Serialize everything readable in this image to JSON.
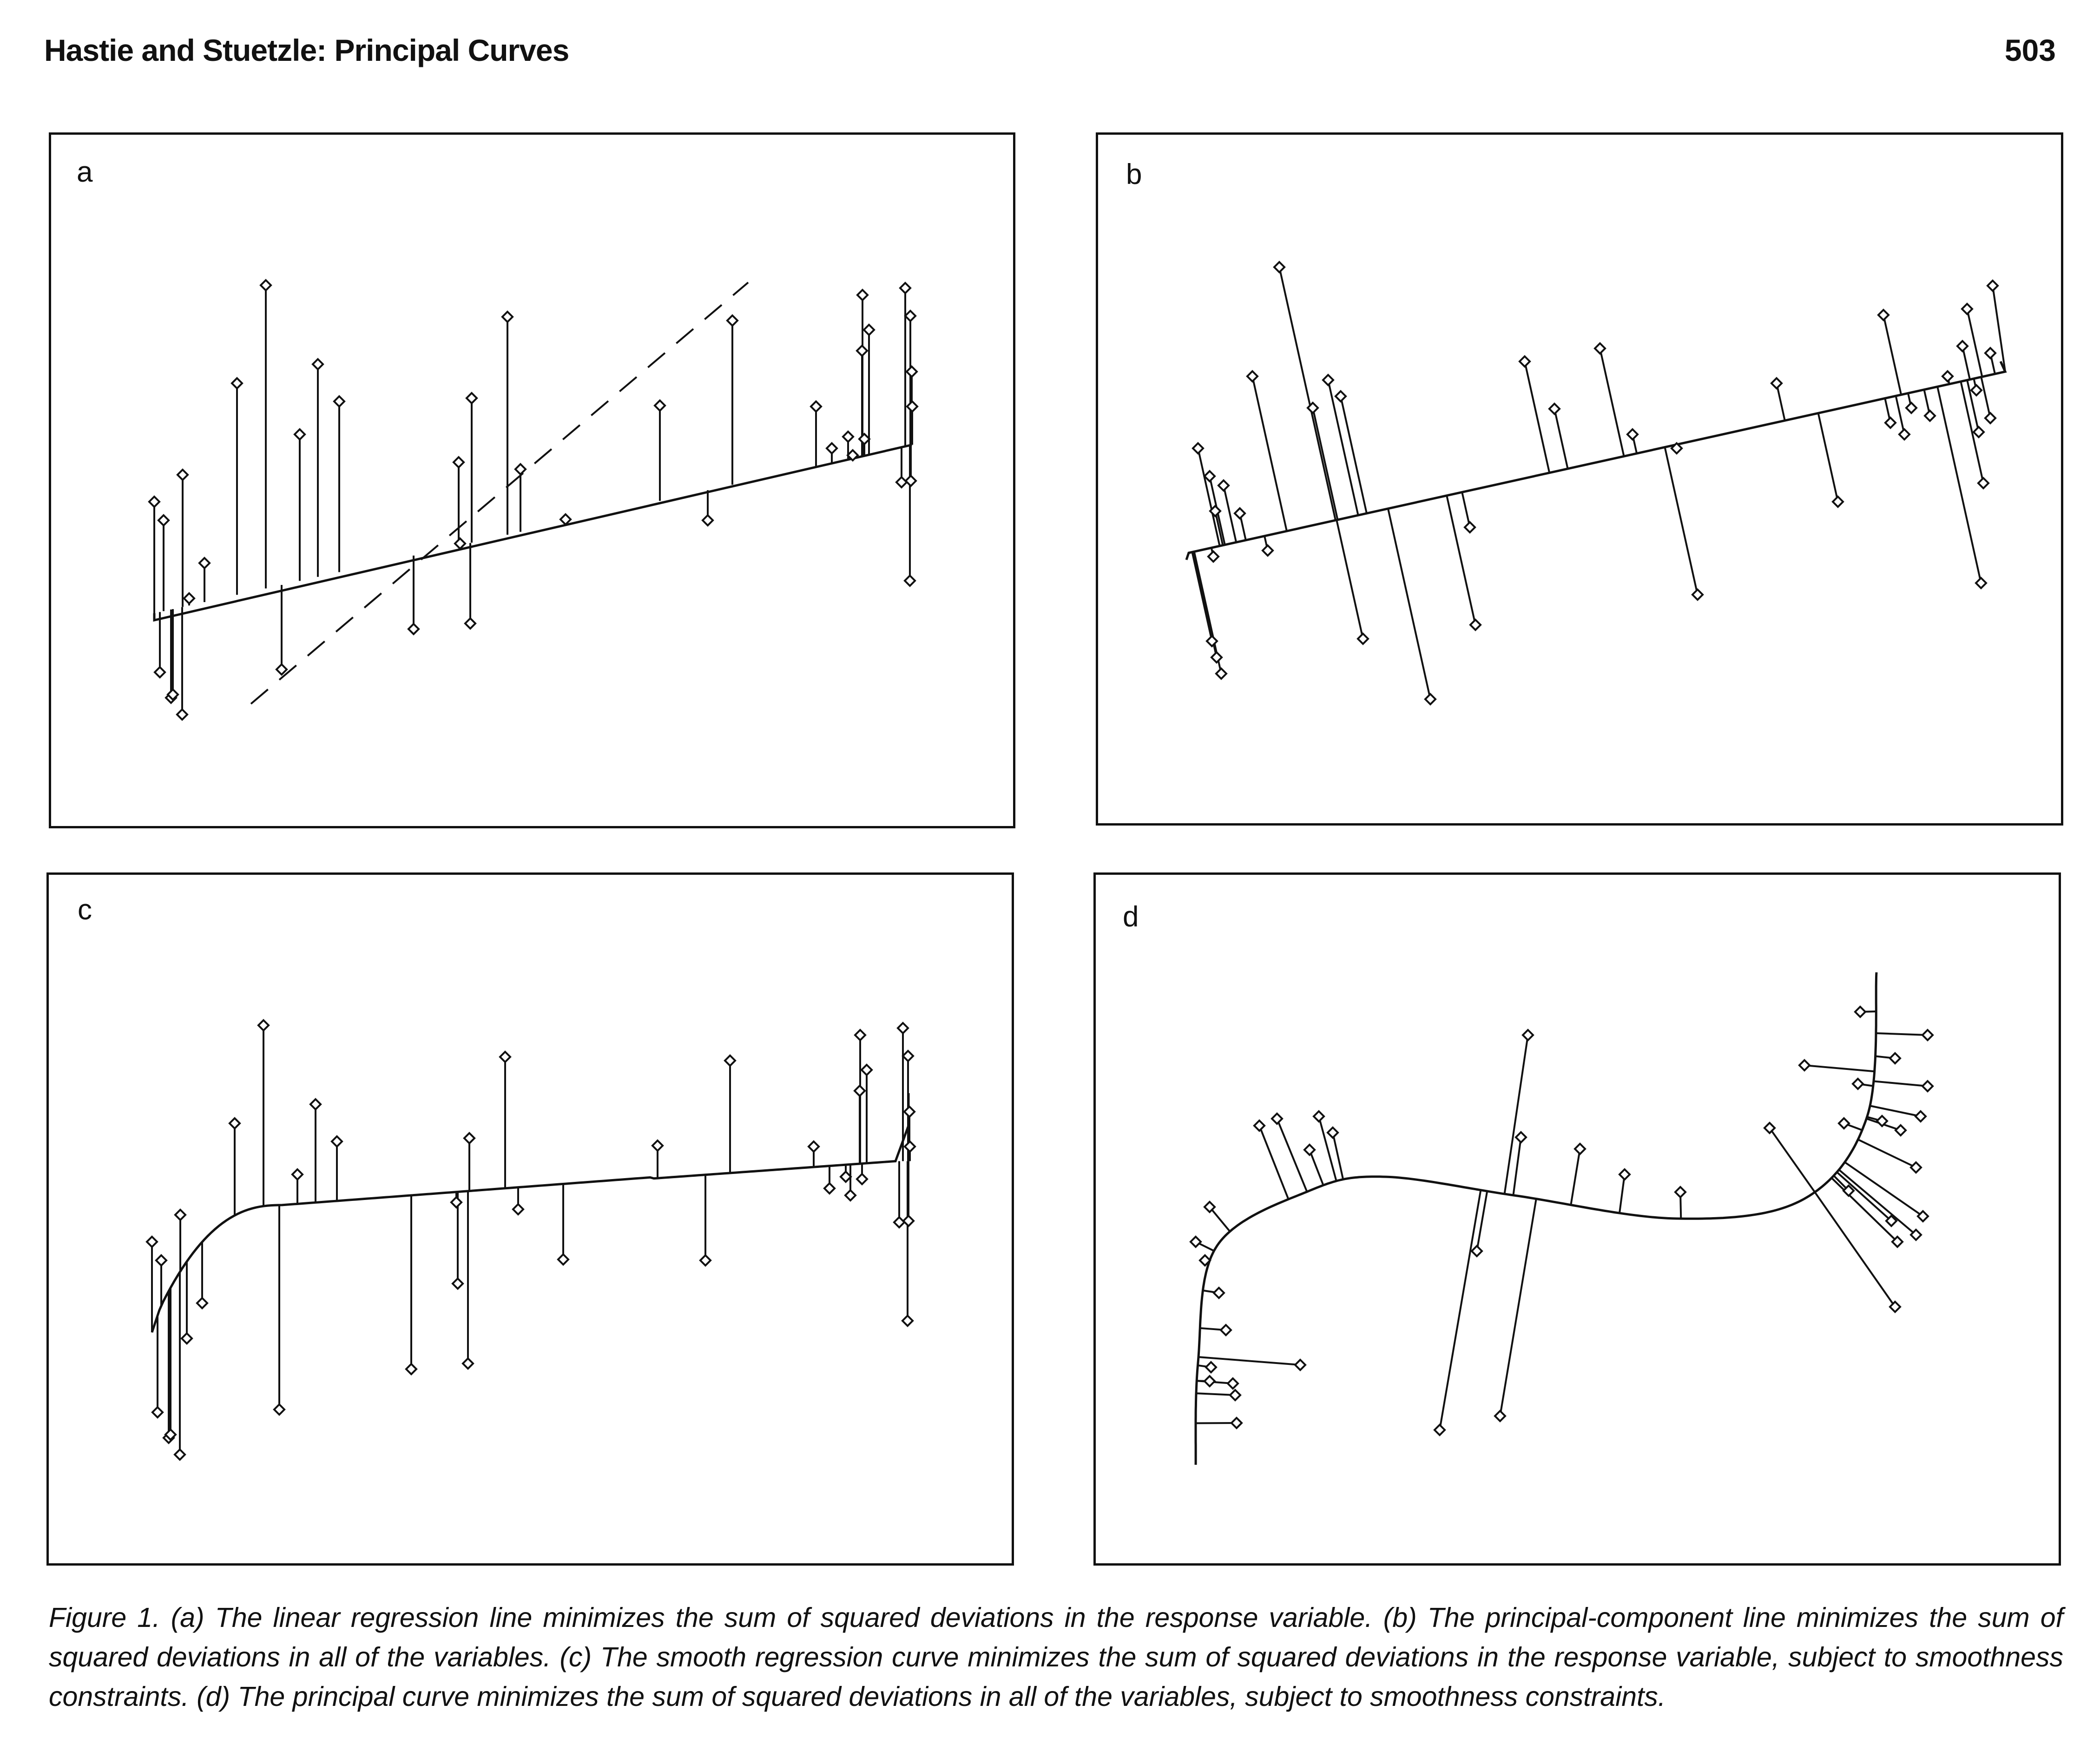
{
  "header": {
    "running_head": "Hastie and Stuetzle: Principal Curves",
    "page_number": "503"
  },
  "figure": {
    "panels": [
      {
        "letter": "a"
      },
      {
        "letter": "b"
      },
      {
        "letter": "c"
      },
      {
        "letter": "d"
      }
    ],
    "caption": "Figure 1. (a) The linear regression line minimizes the sum of squared deviations in the response variable. (b) The principal-component line minimizes the sum of squared deviations in all of the variables. (c) The smooth regression curve minimizes the sum of squared deviations in the response variable, subject to smoothness constraints. (d) The principal curve minimizes the sum of squared deviations in all of the variables, subject to smoothness constraints."
  },
  "colors": {
    "ink": "#111111",
    "paper": "#ffffff"
  }
}
